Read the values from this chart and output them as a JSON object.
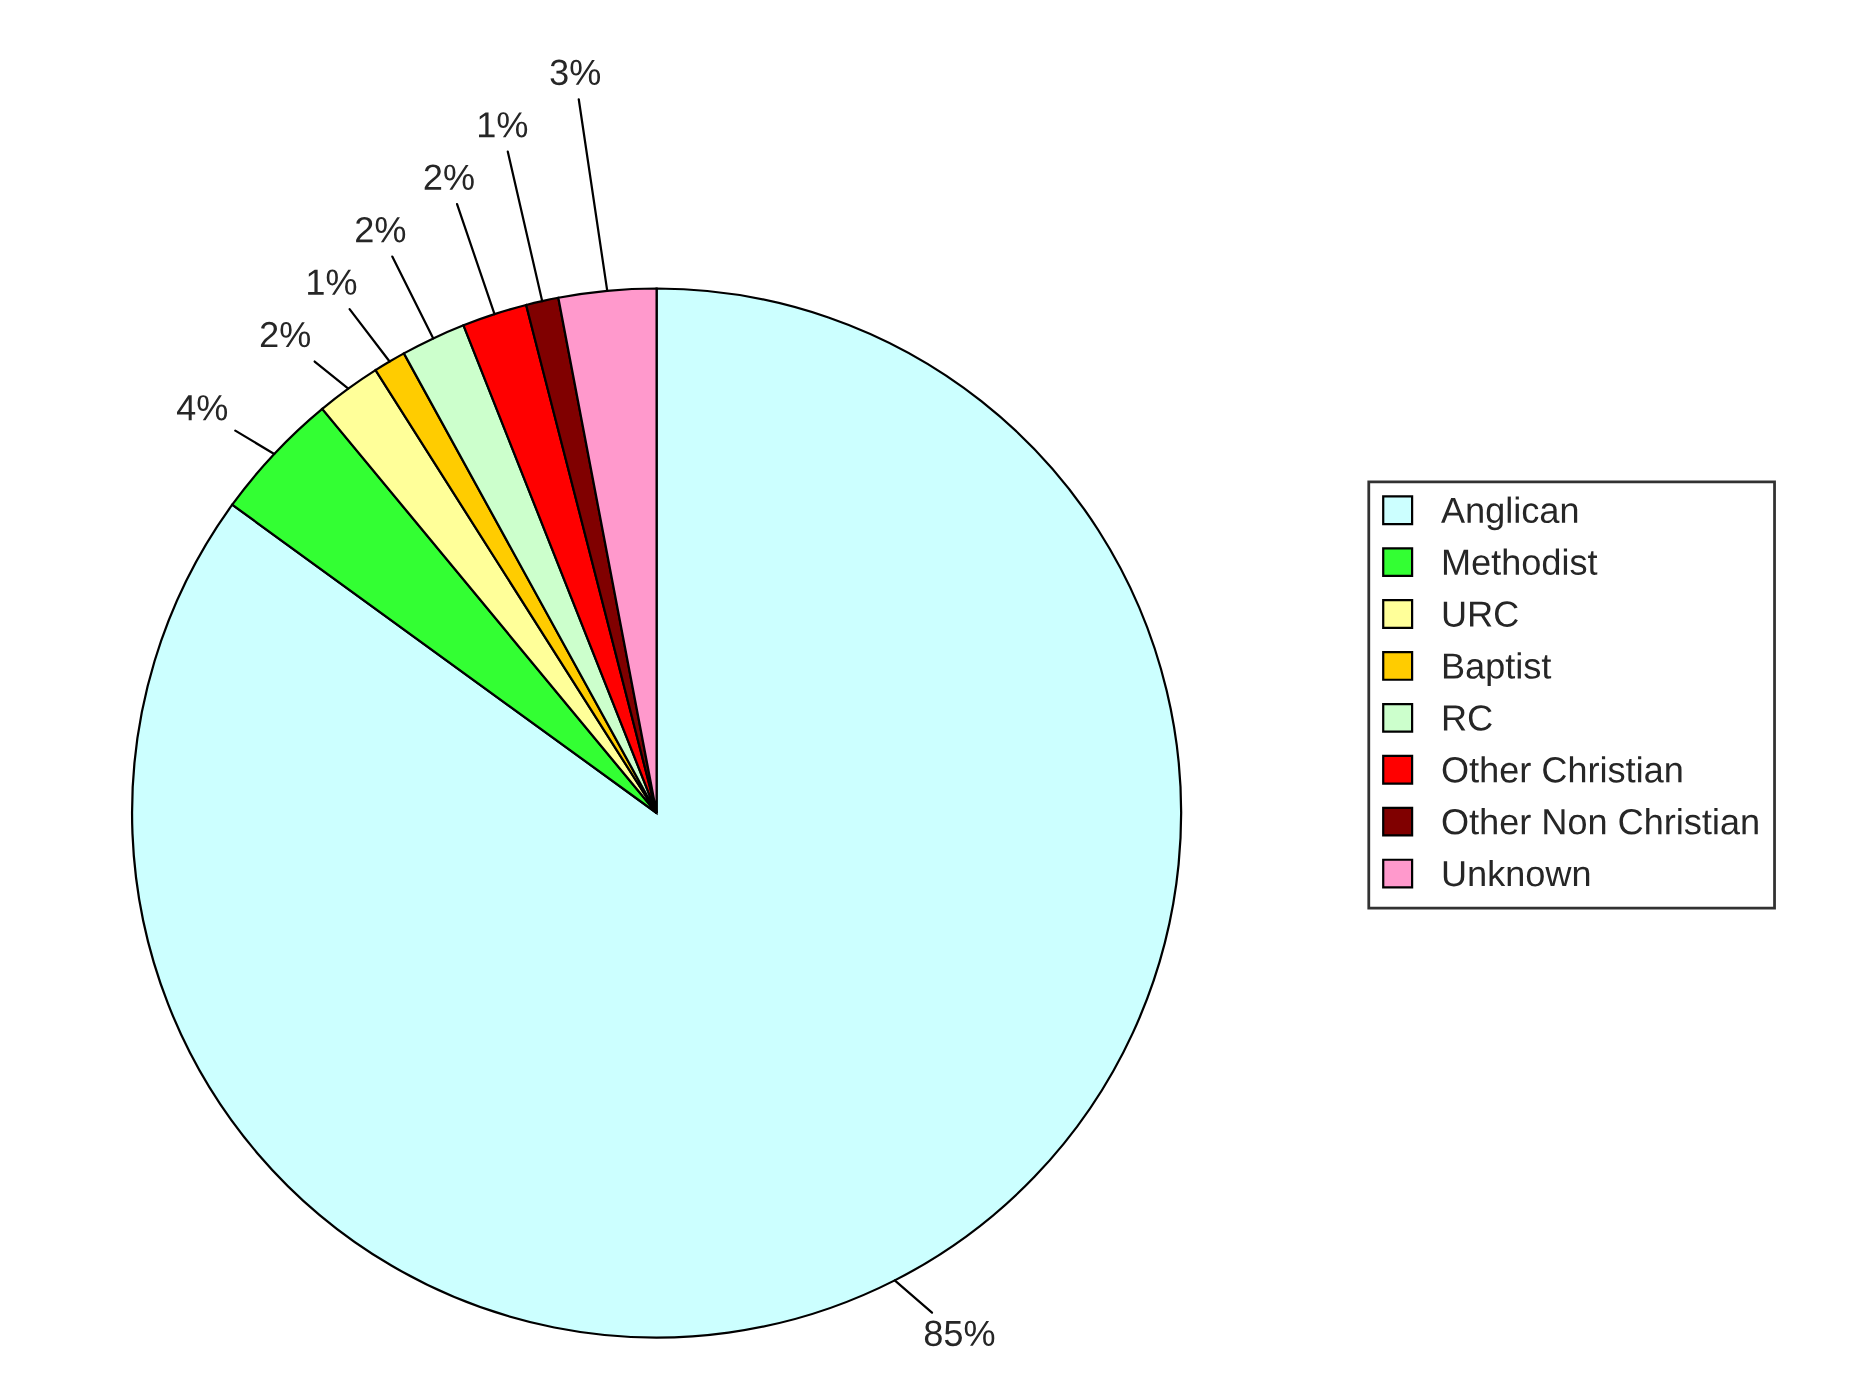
{
  "chart_data": {
    "type": "pie",
    "categories": [
      "Anglican",
      "Methodist",
      "URC",
      "Baptist",
      "RC",
      "Other Christian",
      "Other Non Christian",
      "Unknown"
    ],
    "values": [
      85,
      4,
      2,
      1,
      2,
      2,
      1,
      3
    ],
    "colors": [
      "#ccffff",
      "#33ff33",
      "#ffff99",
      "#ffcc00",
      "#ccffcc",
      "#ff0000",
      "#800000",
      "#ff99cc"
    ],
    "value_labels": [
      "85%",
      "4%",
      "2%",
      "1%",
      "2%",
      "2%",
      "1%",
      "3%"
    ],
    "legend": "right"
  }
}
